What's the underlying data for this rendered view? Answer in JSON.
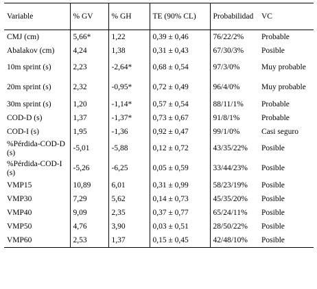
{
  "table": {
    "headers": [
      "Variable",
      "% GV",
      "% GH",
      "TE (90% CL)",
      "Probabilidad",
      "VC"
    ],
    "rows": [
      [
        "CMJ (cm)",
        "5,66*",
        "1,22",
        "0,39 ± 0,46",
        "76/22/2%",
        "Probable"
      ],
      [
        "Abalakov (cm)",
        "4,24",
        "1,38",
        "0,31 ± 0,43",
        "67/30/3%",
        "Posible"
      ],
      [
        "10m sprint (s)",
        "2,23",
        "-2,64*",
        "0,68 ± 0,54",
        "97/3/0%",
        "Muy probable"
      ],
      [
        "20m sprint (s)",
        "2,32",
        "-0,95*",
        "0,72 ± 0,49",
        "96/4/0%",
        "Muy probable"
      ],
      [
        "30m sprint (s)",
        "1,20",
        "-1,14*",
        "0,57 ± 0,54",
        "88/11/1%",
        "Probable"
      ],
      [
        "COD-D (s)",
        "1,37",
        "-1,37*",
        "0,73 ± 0,67",
        "91/8/1%",
        "Probable"
      ],
      [
        "COD-I (s)",
        "1,95",
        "-1,36",
        "0,92 ± 0,47",
        "99/1/0%",
        "Casi seguro"
      ],
      [
        "%Pérdida-COD-D (s)",
        "-5,01",
        "-5,88",
        "0,12 ± 0,72",
        "43/35/22%",
        "Posible"
      ],
      [
        "%Pérdida-COD-I (s)",
        "-5,26",
        "-6,25",
        "0,05 ± 0,59",
        "33/44/23%",
        "Posible"
      ],
      [
        "VMP15",
        "10,89",
        "6,01",
        "0,31 ± 0,99",
        "58/23/19%",
        "Posible"
      ],
      [
        "VMP30",
        "7,29",
        "5,62",
        "0,14 ± 0,73",
        "45/35/20%",
        "Posible"
      ],
      [
        "VMP40",
        "9,09",
        "2,35",
        "0,37 ± 0,77",
        "65/24/11%",
        "Posible"
      ],
      [
        "VMP50",
        "4,76",
        "3,90",
        "0,03 ± 0,51",
        "28/50/22%",
        "Posible"
      ],
      [
        "VMP60",
        "2,53",
        "1,37",
        "0,15 ± 0,45",
        "42/48/10%",
        "Posible"
      ]
    ]
  }
}
